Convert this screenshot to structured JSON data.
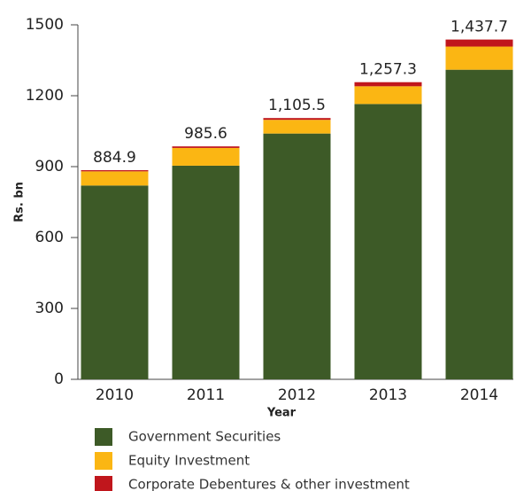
{
  "chart_data": {
    "type": "stacked_bar",
    "x_label": "Year",
    "y_label": "Rs. bn",
    "categories": [
      "2010",
      "2011",
      "2012",
      "2013",
      "2014"
    ],
    "series": [
      {
        "name": "Government Securities",
        "color": "#3d5a27",
        "values": [
          820,
          904,
          1040,
          1165,
          1310
        ]
      },
      {
        "name": "Equity Investment",
        "color": "#fbb613",
        "values": [
          60,
          75,
          58,
          75,
          98
        ]
      },
      {
        "name": "Corporate Debentures & other investment",
        "color": "#c0161c",
        "values": [
          4.9,
          6.6,
          7.5,
          17.3,
          29.7
        ]
      }
    ],
    "totals": [
      884.9,
      985.6,
      1105.5,
      1257.3,
      1437.7
    ],
    "total_labels": [
      "884.9",
      "985.6",
      "1,105.5",
      "1,257.3",
      "1,437.7"
    ],
    "ylim": [
      0,
      1500
    ],
    "yticks": [
      0,
      300,
      600,
      900,
      1200,
      1500
    ]
  }
}
